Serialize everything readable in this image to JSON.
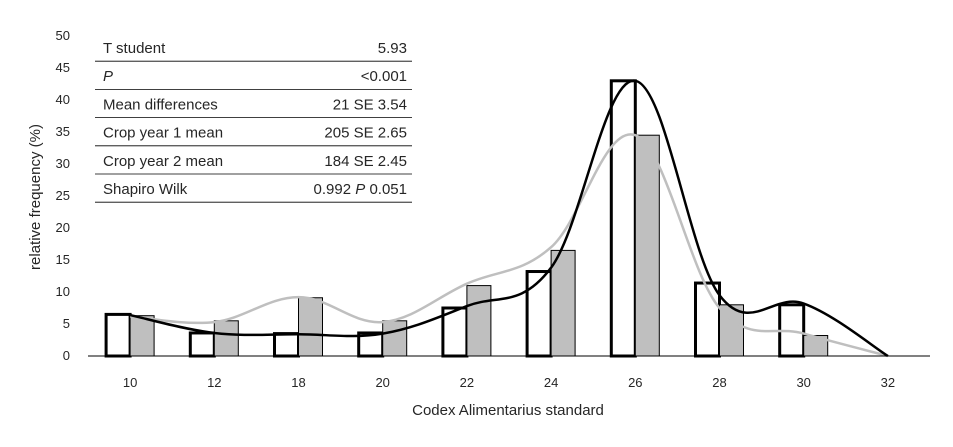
{
  "chart_data": {
    "type": "bar",
    "xlabel": "Codex Alimentarius standard",
    "ylabel": "relative frequency (%)",
    "ylim": [
      0,
      50
    ],
    "yticks": [
      "0",
      "5",
      "10",
      "15",
      "20",
      "25",
      "30",
      "35",
      "40",
      "45",
      "50"
    ],
    "categories": [
      "10",
      "12",
      "18",
      "20",
      "22",
      "24",
      "26",
      "28",
      "30",
      "32"
    ],
    "series": [
      {
        "style": "white-bar-black-outline",
        "values": [
          6.5,
          3.6,
          3.5,
          3.6,
          7.5,
          13.2,
          43,
          11.4,
          8,
          0
        ]
      },
      {
        "style": "gray-bar",
        "values": [
          6.3,
          5.5,
          9.1,
          5.5,
          11,
          16.5,
          34.5,
          8,
          3.2,
          0
        ]
      }
    ],
    "curves": [
      {
        "color": "#000000",
        "values": [
          6.4,
          3.6,
          3.4,
          3.5,
          7.8,
          13.8,
          43,
          9.5,
          8.2,
          0
        ]
      },
      {
        "color": "#bfbfbf",
        "values": [
          6.2,
          5.3,
          9.2,
          5.3,
          11.3,
          17,
          34.5,
          7.5,
          3.5,
          0
        ]
      }
    ],
    "legend": "none",
    "grid": false,
    "stats_table": [
      {
        "label": "T student",
        "value": "5.93"
      },
      {
        "label": "P",
        "label_italic": true,
        "value": "<0.001"
      },
      {
        "label": "Mean differences",
        "value": "21 SE 3.54"
      },
      {
        "label": "Crop year 1 mean",
        "value": "205 SE 2.65"
      },
      {
        "label": "Crop year 2 mean",
        "value": "184 SE 2.45"
      },
      {
        "label": "Shapiro Wilk",
        "value_pre": "0.992 ",
        "value_italic": "P",
        "value_post": " 0.051"
      }
    ]
  }
}
